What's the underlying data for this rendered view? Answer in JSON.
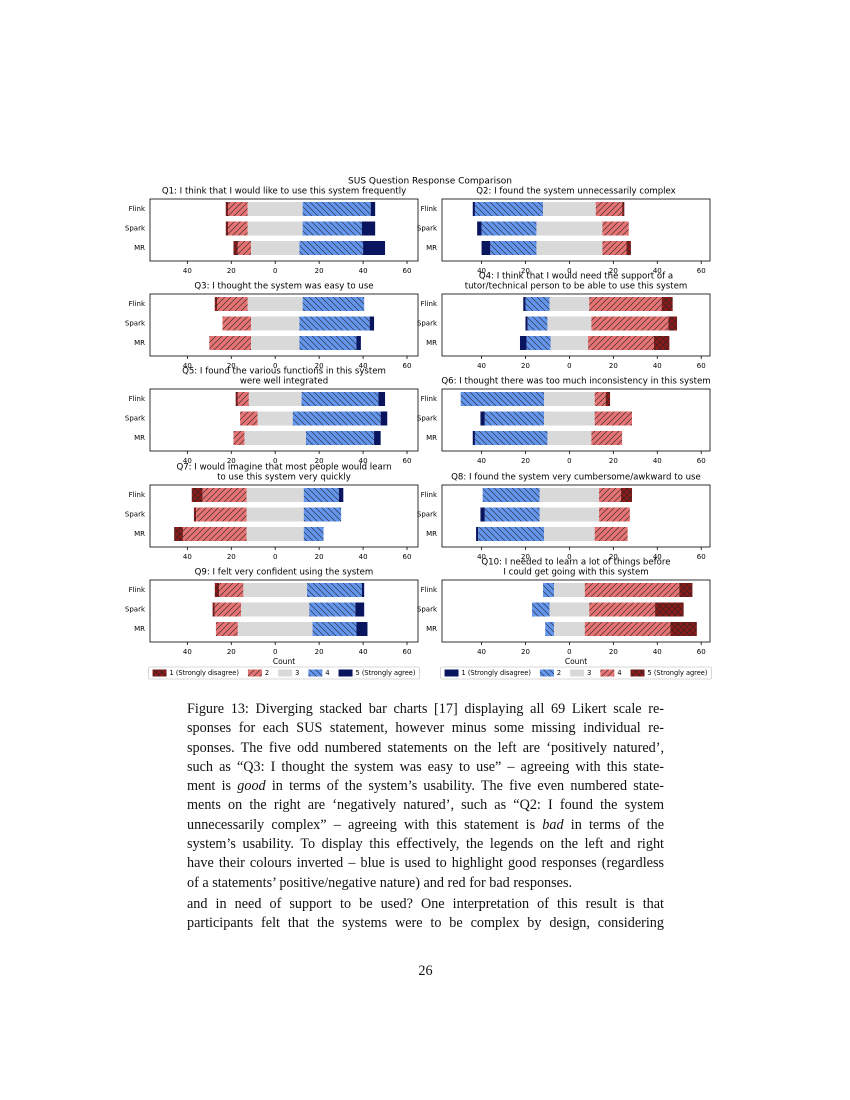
{
  "figure_title": "SUS Question Response Comparison",
  "chart_data": [
    {
      "type": "diverging_bar",
      "title": [
        "Q1: I think that I would like to use this system frequently"
      ],
      "categories": [
        "Flink",
        "Spark",
        "MR"
      ],
      "series": [
        {
          "name": "1 (Strongly disagree)",
          "color": "#8b1a1a",
          "hatch": "xx",
          "values": [
            1,
            1,
            2
          ]
        },
        {
          "name": "2",
          "color": "#e57373",
          "hatch": "//",
          "values": [
            9,
            9,
            6
          ]
        },
        {
          "name": "3",
          "color": "#d9d9d9",
          "values": [
            25,
            25,
            22
          ]
        },
        {
          "name": "4",
          "color": "#6495ed",
          "hatch": "\\\\",
          "values": [
            31,
            27,
            29
          ]
        },
        {
          "name": "5 (Strongly agree)",
          "color": "#0a1560",
          "values": [
            2,
            6,
            10
          ]
        }
      ],
      "xlim": [
        -57,
        65
      ],
      "xticks": [
        {
          "value": -40,
          "label": "40"
        },
        {
          "value": -20,
          "label": "20"
        },
        0,
        20,
        40,
        60
      ]
    },
    {
      "type": "diverging_bar",
      "title": [
        "Q2: I found the system unnecessarily complex"
      ],
      "categories": [
        "Flink",
        "Spark",
        "MR"
      ],
      "series": [
        {
          "name": "1 (Strongly disagree)",
          "color": "#0a1560",
          "values": [
            1,
            2,
            4
          ]
        },
        {
          "name": "2",
          "color": "#6495ed",
          "hatch": "\\\\",
          "values": [
            31,
            25,
            21
          ]
        },
        {
          "name": "3",
          "color": "#d9d9d9",
          "values": [
            24,
            30,
            30
          ]
        },
        {
          "name": "4",
          "color": "#e57373",
          "hatch": "//",
          "values": [
            12,
            12,
            11
          ]
        },
        {
          "name": "5 (Strongly agree)",
          "color": "#8b1a1a",
          "hatch": "xx",
          "values": [
            1,
            0,
            2
          ]
        }
      ],
      "xlim": [
        -58,
        64
      ],
      "xticks": [
        {
          "value": -40,
          "label": "40"
        },
        {
          "value": -20,
          "label": "20"
        },
        0,
        20,
        40,
        60
      ]
    },
    {
      "type": "diverging_bar",
      "title": [
        "Q3: I thought the system was easy to use"
      ],
      "categories": [
        "Flink",
        "Spark",
        "MR"
      ],
      "series": [
        {
          "name": "1 (Strongly disagree)",
          "color": "#8b1a1a",
          "hatch": "xx",
          "values": [
            1,
            0,
            0
          ]
        },
        {
          "name": "2",
          "color": "#e57373",
          "hatch": "//",
          "values": [
            14,
            13,
            19
          ]
        },
        {
          "name": "3",
          "color": "#d9d9d9",
          "values": [
            25,
            22,
            22
          ]
        },
        {
          "name": "4",
          "color": "#6495ed",
          "hatch": "\\\\",
          "values": [
            28,
            32,
            26
          ]
        },
        {
          "name": "5 (Strongly agree)",
          "color": "#0a1560",
          "values": [
            0,
            2,
            2
          ]
        }
      ],
      "xlim": [
        -57,
        65
      ],
      "xticks": [
        {
          "value": -40,
          "label": "40"
        },
        {
          "value": -20,
          "label": "20"
        },
        0,
        20,
        40,
        60
      ]
    },
    {
      "type": "diverging_bar",
      "title": [
        "Q4: I think that I would need the support of a",
        "tutor/technical person to be able to use this system"
      ],
      "categories": [
        "Flink",
        "Spark",
        "MR"
      ],
      "series": [
        {
          "name": "1 (Strongly disagree)",
          "color": "#0a1560",
          "values": [
            1,
            1,
            3
          ]
        },
        {
          "name": "2",
          "color": "#6495ed",
          "hatch": "\\\\",
          "values": [
            11,
            9,
            11
          ]
        },
        {
          "name": "3",
          "color": "#d9d9d9",
          "values": [
            18,
            20,
            17
          ]
        },
        {
          "name": "4",
          "color": "#e57373",
          "hatch": "//",
          "values": [
            33,
            35,
            30
          ]
        },
        {
          "name": "5 (Strongly agree)",
          "color": "#8b1a1a",
          "hatch": "xx",
          "values": [
            5,
            4,
            7
          ]
        }
      ],
      "xlim": [
        -58,
        64
      ],
      "xticks": [
        {
          "value": -40,
          "label": "40"
        },
        {
          "value": -20,
          "label": "20"
        },
        0,
        20,
        40,
        60
      ]
    },
    {
      "type": "diverging_bar",
      "title": [
        "Q5: I found the various functions in this system",
        "were well integrated"
      ],
      "categories": [
        "Flink",
        "Spark",
        "MR"
      ],
      "series": [
        {
          "name": "1 (Strongly disagree)",
          "color": "#8b1a1a",
          "hatch": "xx",
          "values": [
            1,
            0,
            0
          ]
        },
        {
          "name": "2",
          "color": "#e57373",
          "hatch": "//",
          "values": [
            5,
            8,
            5
          ]
        },
        {
          "name": "3",
          "color": "#d9d9d9",
          "values": [
            24,
            16,
            28
          ]
        },
        {
          "name": "4",
          "color": "#6495ed",
          "hatch": "\\\\",
          "values": [
            35,
            40,
            31
          ]
        },
        {
          "name": "5 (Strongly agree)",
          "color": "#0a1560",
          "values": [
            3,
            3,
            3
          ]
        }
      ],
      "xlim": [
        -57,
        65
      ],
      "xticks": [
        {
          "value": -40,
          "label": "40"
        },
        {
          "value": -20,
          "label": "20"
        },
        0,
        20,
        40,
        60
      ]
    },
    {
      "type": "diverging_bar",
      "title": [
        "Q6: I thought there was too much inconsistency in this system"
      ],
      "categories": [
        "Flink",
        "Spark",
        "MR"
      ],
      "series": [
        {
          "name": "1 (Strongly disagree)",
          "color": "#0a1560",
          "values": [
            0,
            2,
            1
          ]
        },
        {
          "name": "2",
          "color": "#6495ed",
          "hatch": "\\\\",
          "values": [
            38,
            27,
            33
          ]
        },
        {
          "name": "3",
          "color": "#d9d9d9",
          "values": [
            23,
            23,
            20
          ]
        },
        {
          "name": "4",
          "color": "#e57373",
          "hatch": "//",
          "values": [
            5,
            17,
            14
          ]
        },
        {
          "name": "5 (Strongly agree)",
          "color": "#8b1a1a",
          "hatch": "xx",
          "values": [
            2,
            0,
            0
          ]
        }
      ],
      "xlim": [
        -58,
        64
      ],
      "xticks": [
        {
          "value": -40,
          "label": "40"
        },
        {
          "value": -20,
          "label": "20"
        },
        0,
        20,
        40,
        60
      ]
    },
    {
      "type": "diverging_bar",
      "title": [
        "Q7: I would imagine that most people would learn",
        "to use this system very quickly"
      ],
      "categories": [
        "Flink",
        "Spark",
        "MR"
      ],
      "series": [
        {
          "name": "1 (Strongly disagree)",
          "color": "#8b1a1a",
          "hatch": "xx",
          "values": [
            5,
            1,
            4
          ]
        },
        {
          "name": "2",
          "color": "#e57373",
          "hatch": "//",
          "values": [
            20,
            23,
            29
          ]
        },
        {
          "name": "3",
          "color": "#d9d9d9",
          "values": [
            26,
            26,
            26
          ]
        },
        {
          "name": "4",
          "color": "#6495ed",
          "hatch": "\\\\",
          "values": [
            16,
            17,
            9
          ]
        },
        {
          "name": "5 (Strongly agree)",
          "color": "#0a1560",
          "values": [
            2,
            0,
            0
          ]
        }
      ],
      "xlim": [
        -57,
        65
      ],
      "xticks": [
        {
          "value": -40,
          "label": "40"
        },
        {
          "value": -20,
          "label": "20"
        },
        0,
        20,
        40,
        60
      ]
    },
    {
      "type": "diverging_bar",
      "title": [
        "Q8: I found the system very cumbersome/awkward to use"
      ],
      "categories": [
        "Flink",
        "Spark",
        "MR"
      ],
      "series": [
        {
          "name": "1 (Strongly disagree)",
          "color": "#0a1560",
          "values": [
            0,
            2,
            1
          ]
        },
        {
          "name": "2",
          "color": "#6495ed",
          "hatch": "\\\\",
          "values": [
            26,
            25,
            30
          ]
        },
        {
          "name": "3",
          "color": "#d9d9d9",
          "values": [
            27,
            27,
            23
          ]
        },
        {
          "name": "4",
          "color": "#e57373",
          "hatch": "//",
          "values": [
            10,
            14,
            15
          ]
        },
        {
          "name": "5 (Strongly agree)",
          "color": "#8b1a1a",
          "hatch": "xx",
          "values": [
            5,
            0,
            0
          ]
        }
      ],
      "xlim": [
        -58,
        64
      ],
      "xticks": [
        {
          "value": -40,
          "label": "40"
        },
        {
          "value": -20,
          "label": "20"
        },
        0,
        20,
        40,
        60
      ]
    },
    {
      "type": "diverging_bar",
      "title": [
        "Q9: I felt very confident using the system"
      ],
      "categories": [
        "Flink",
        "Spark",
        "MR"
      ],
      "series": [
        {
          "name": "1 (Strongly disagree)",
          "color": "#8b1a1a",
          "hatch": "xx",
          "values": [
            2,
            1,
            0
          ]
        },
        {
          "name": "2",
          "color": "#e57373",
          "hatch": "//",
          "values": [
            11,
            12,
            10
          ]
        },
        {
          "name": "3",
          "color": "#d9d9d9",
          "values": [
            29,
            31,
            34
          ]
        },
        {
          "name": "4",
          "color": "#6495ed",
          "hatch": "\\\\",
          "values": [
            25,
            21,
            20
          ]
        },
        {
          "name": "5 (Strongly agree)",
          "color": "#0a1560",
          "values": [
            1,
            4,
            5
          ]
        }
      ],
      "xlim": [
        -57,
        65
      ],
      "xticks": [
        {
          "value": -40,
          "label": "40"
        },
        {
          "value": -20,
          "label": "20"
        },
        0,
        20,
        40,
        60
      ],
      "xlabel": "Count",
      "legend": true
    },
    {
      "type": "diverging_bar",
      "title": [
        "Q10: I needed to learn a lot of things before",
        "I could get going with this system"
      ],
      "categories": [
        "Flink",
        "Spark",
        "MR"
      ],
      "series": [
        {
          "name": "1 (Strongly disagree)",
          "color": "#0a1560",
          "values": [
            0,
            0,
            0
          ]
        },
        {
          "name": "2",
          "color": "#6495ed",
          "hatch": "\\\\",
          "values": [
            5,
            8,
            4
          ]
        },
        {
          "name": "3",
          "color": "#d9d9d9",
          "values": [
            14,
            18,
            14
          ]
        },
        {
          "name": "4",
          "color": "#e57373",
          "hatch": "//",
          "values": [
            43,
            30,
            39
          ]
        },
        {
          "name": "5 (Strongly agree)",
          "color": "#8b1a1a",
          "hatch": "xx",
          "values": [
            6,
            13,
            12
          ]
        }
      ],
      "xlim": [
        -58,
        64
      ],
      "xticks": [
        {
          "value": -40,
          "label": "40"
        },
        {
          "value": -20,
          "label": "20"
        },
        0,
        20,
        40,
        60
      ],
      "xlabel": "Count",
      "legend": true
    }
  ],
  "caption": [
    [
      "Figure 13: Diverging stacked bar charts [17] displaying all 69 Likert scale re-"
    ],
    [
      "sponses for each SUS statement, however minus some missing individual re-"
    ],
    [
      "sponses. The five odd numbered statements on the left are ‘positively natured’,"
    ],
    [
      "such as “Q3: I thought the system was easy to use” – agreeing with this state-"
    ],
    [
      "ment is",
      "good",
      "in terms of the system’s usability. The five even numbered state-"
    ],
    [
      "ments on the right are ‘negatively natured’, such as “Q2: I found the system"
    ],
    [
      "unnecessarily complex” – agreeing with this statement is",
      "bad",
      "in terms of the"
    ],
    [
      "system’s usability. To display this effectively, the legends on the left and right"
    ],
    [
      "have their colours inverted – blue is used to highlight good responses (regardless"
    ],
    [
      "of a statements’ positive/negative nature) and red for bad responses."
    ]
  ],
  "body": [
    "and in need of support to be used? One interpretation of this result is that",
    "participants felt that the systems were to be complex by design, considering"
  ],
  "page_number": "26"
}
